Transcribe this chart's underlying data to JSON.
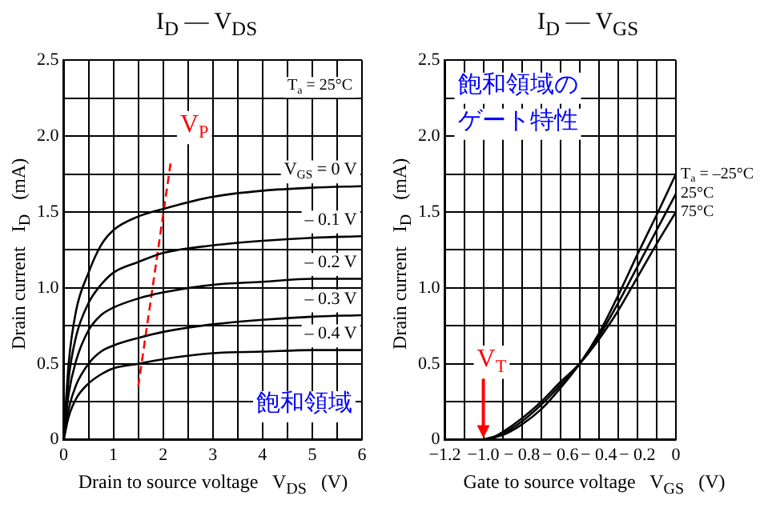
{
  "chart_data": [
    {
      "type": "line",
      "title": "I$_{D}$ — V$_{DS}$",
      "xlabel": "Drain to source voltage   V$_{DS}$   (V)",
      "ylabel": "Drain current   I$_{D}$   (mA)",
      "x": [
        0,
        0.1,
        0.25,
        0.5,
        0.75,
        1,
        1.5,
        2,
        3,
        4,
        5,
        6
      ],
      "series": [
        {
          "name": "V$_{GS}$ = 0 V",
          "color": "#000000",
          "values": [
            0,
            0.5,
            0.85,
            1.1,
            1.28,
            1.38,
            1.47,
            1.52,
            1.6,
            1.64,
            1.66,
            1.67
          ]
        },
        {
          "name": "– 0.1 V",
          "color": "#000000",
          "values": [
            0,
            0.4,
            0.68,
            0.9,
            1.02,
            1.1,
            1.17,
            1.23,
            1.28,
            1.31,
            1.33,
            1.34
          ]
        },
        {
          "name": "– 0.2 V",
          "color": "#000000",
          "values": [
            0,
            0.3,
            0.52,
            0.72,
            0.82,
            0.87,
            0.93,
            0.97,
            1.02,
            1.04,
            1.06,
            1.06
          ]
        },
        {
          "name": "– 0.3 V",
          "color": "#000000",
          "values": [
            0,
            0.2,
            0.36,
            0.5,
            0.58,
            0.62,
            0.67,
            0.71,
            0.76,
            0.79,
            0.81,
            0.82
          ]
        },
        {
          "name": "– 0.4 V",
          "color": "#000000",
          "values": [
            0,
            0.15,
            0.27,
            0.37,
            0.43,
            0.47,
            0.5,
            0.53,
            0.57,
            0.58,
            0.59,
            0.59
          ]
        },
        {
          "type": "line",
          "color": "#ff0000",
          "line_style": "dashed",
          "x": [
            1.5,
            2.15
          ],
          "values": [
            0.35,
            1.82
          ]
        }
      ],
      "xlim": [
        0,
        6
      ],
      "xticks": [
        0,
        {
          "value": 0.5,
          "label": null
        },
        1,
        {
          "value": 1.5,
          "label": null
        },
        2,
        {
          "value": 2.5,
          "label": null
        },
        3,
        {
          "value": 3.5,
          "label": null
        },
        4,
        {
          "value": 4.5,
          "label": null
        },
        5,
        {
          "value": 5.5,
          "label": null
        },
        6
      ],
      "ylim": [
        0,
        2.5
      ],
      "yticks": [
        0,
        {
          "value": 0.25,
          "label": null
        },
        0.5,
        {
          "value": 0.75,
          "label": null
        },
        {
          "value": 1,
          "label": "1.0"
        },
        {
          "value": 1.25,
          "label": null
        },
        1.5,
        {
          "value": 1.75,
          "label": null
        },
        {
          "value": 2,
          "label": "2.0"
        },
        {
          "value": 2.25,
          "label": null
        },
        2.5
      ],
      "annotations": [
        "T$_{a}$ = 25°C",
        "飽和領域",
        {
          "text": "V$_{P}$",
          "x": 2.15,
          "y": 1.82
        }
      ],
      "grid": true,
      "legend": false,
      "marker": "none",
      "line_style": "solid"
    },
    {
      "type": "line",
      "title": "I$_{D}$ — V$_{GS}$",
      "xlabel": "Gate to source voltage   V$_{GS}$   (V)",
      "ylabel": "Drain current   I$_{D}$   (mA)",
      "series": [
        {
          "name": "T$_{a}$ = –25°C",
          "color": "#000000",
          "x": [
            -1,
            -0.9,
            -0.8,
            -0.7,
            -0.6,
            -0.5,
            -0.4,
            -0.3,
            -0.2,
            -0.1,
            0
          ],
          "values": [
            0,
            0.03,
            0.1,
            0.2,
            0.34,
            0.5,
            0.7,
            0.95,
            1.22,
            1.48,
            1.75
          ]
        },
        {
          "name": "25°C",
          "color": "#000000",
          "x": [
            -1,
            -0.9,
            -0.8,
            -0.7,
            -0.6,
            -0.5,
            -0.4,
            -0.3,
            -0.2,
            -0.1,
            0
          ],
          "values": [
            0,
            0.04,
            0.12,
            0.23,
            0.36,
            0.5,
            0.68,
            0.9,
            1.14,
            1.38,
            1.62
          ]
        },
        {
          "name": "75°C",
          "color": "#000000",
          "x": [
            -0.97,
            -0.9,
            -0.8,
            -0.7,
            -0.6,
            -0.5,
            -0.4,
            -0.3,
            -0.2,
            -0.1,
            0
          ],
          "values": [
            0,
            0.05,
            0.14,
            0.25,
            0.38,
            0.5,
            0.66,
            0.85,
            1.07,
            1.29,
            1.5
          ]
        }
      ],
      "xlim": [
        -1.2,
        0
      ],
      "xticks": [
        {
          "value": -1.2,
          "label": "−1.2"
        },
        {
          "value": -1.1,
          "label": null
        },
        {
          "value": -1,
          "label": "−1.0"
        },
        {
          "value": -0.9,
          "label": null
        },
        {
          "value": -0.8,
          "label": "− 0.8"
        },
        {
          "value": -0.7,
          "label": null
        },
        {
          "value": -0.6,
          "label": "− 0.6"
        },
        {
          "value": -0.5,
          "label": null
        },
        {
          "value": -0.4,
          "label": "− 0.4"
        },
        {
          "value": -0.3,
          "label": null
        },
        {
          "value": -0.2,
          "label": "− 0.2"
        },
        {
          "value": -0.1,
          "label": null
        },
        0
      ],
      "ylim": [
        0,
        2.5
      ],
      "yticks": [
        0,
        {
          "value": 0.25,
          "label": null
        },
        0.5,
        {
          "value": 0.75,
          "label": null
        },
        {
          "value": 1,
          "label": "1.0"
        },
        {
          "value": 1.25,
          "label": null
        },
        1.5,
        {
          "value": 1.75,
          "label": null
        },
        {
          "value": 2,
          "label": "2.0"
        },
        {
          "value": 2.25,
          "label": null
        },
        2.5
      ],
      "annotations": [
        "飽和領域のゲート特性",
        {
          "text": "V$_{T}$",
          "x": -1,
          "y": 0
        }
      ],
      "grid": true,
      "legend": false,
      "marker": "none",
      "line_style": "solid"
    }
  ]
}
